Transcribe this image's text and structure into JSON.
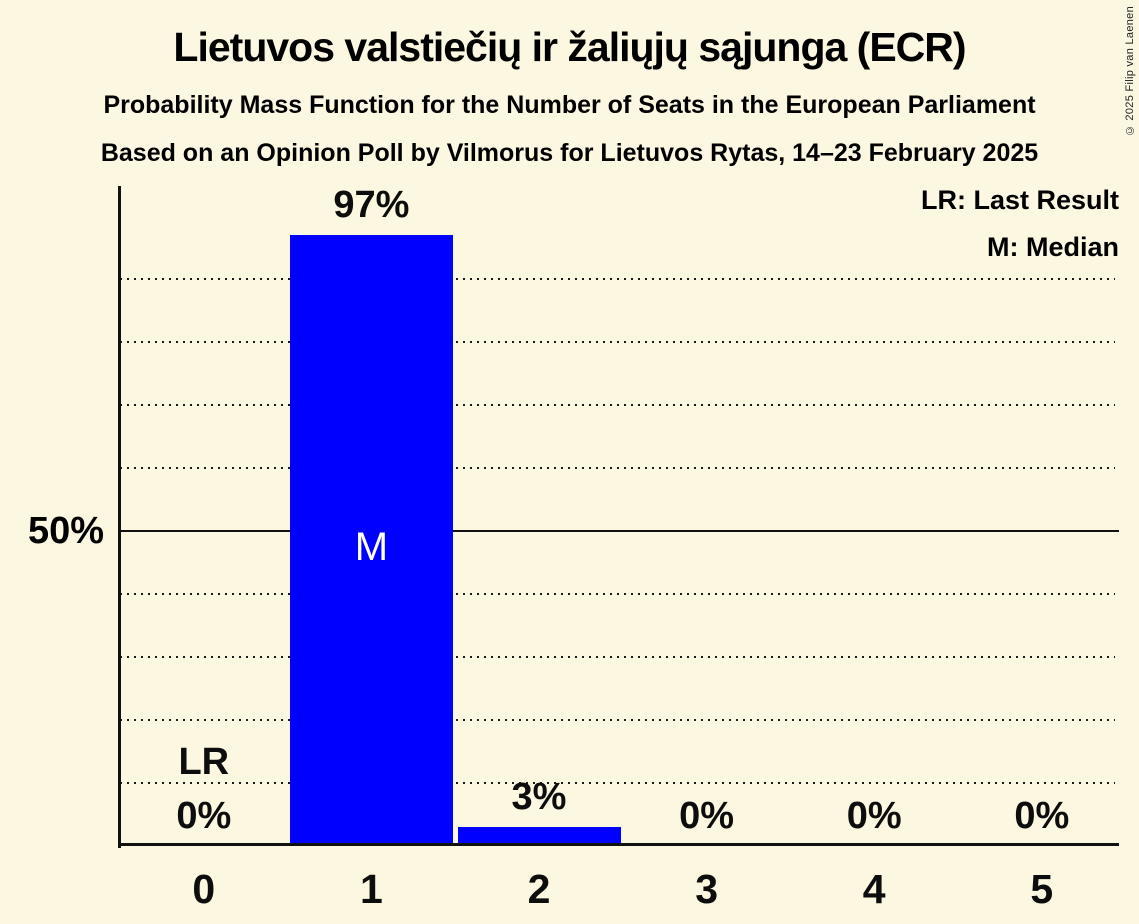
{
  "page": {
    "title": "Lietuvos valstiečių ir žaliųjų sąjunga (ECR)",
    "subtitle_line1": "Probability Mass Function for the Number of Seats in the European Parliament",
    "subtitle_line2": "Based on an Opinion Poll by Vilmorus for Lietuvos Rytas, 14–23 February 2025",
    "copyright": "© 2025 Filip van Laenen"
  },
  "legend": {
    "last_result": "LR: Last Result",
    "median": "M: Median"
  },
  "chart_data": {
    "type": "bar",
    "title": "Lietuvos valstiečių ir žaliųjų sąjunga (ECR)",
    "categories": [
      "0",
      "1",
      "2",
      "3",
      "4",
      "5"
    ],
    "values": [
      0,
      97,
      3,
      0,
      0,
      0
    ],
    "value_labels": [
      "0%",
      "97%",
      "3%",
      "0%",
      "0%",
      "0%"
    ],
    "ylim": [
      0,
      100
    ],
    "y_gridlines_pct": [
      10,
      20,
      30,
      40,
      60,
      70,
      80,
      90
    ],
    "y_solid_line_pct": 50,
    "y_axis_label": {
      "pct": 50,
      "text": "50%"
    },
    "grid": "dotted horizontal",
    "legend_position": "top-right",
    "annotations": {
      "median": {
        "category": "1",
        "label": "M"
      },
      "last_result": {
        "category": "0",
        "label": "LR"
      }
    },
    "colors": {
      "bar": "#0000fe",
      "background": "#fbf7e0",
      "text": "#0d0d0d",
      "median_label": "#ffffff"
    }
  }
}
